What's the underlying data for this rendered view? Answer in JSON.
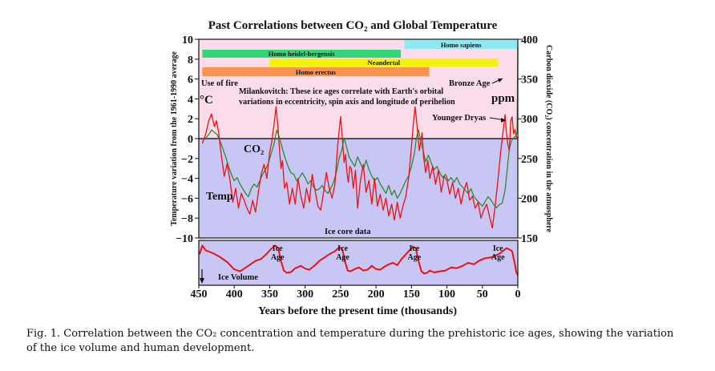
{
  "chart_data": [
    {
      "type": "line",
      "title": "Past Correlations between CO₂ and Global Temperature",
      "xlabel": "Years before the present time (thousands)",
      "ylabel_left": "Temperature variation from the 1961-1990 average",
      "ylabel_left_unit": "°C",
      "ylabel_right": "Carbon dioxide (CO₂) concentration in the atmosphere",
      "ylabel_right_unit": "ppm",
      "xlim": [
        450,
        0
      ],
      "ylim_left": [
        -10,
        10
      ],
      "ylim_right": [
        150,
        400
      ],
      "x_ticks": [
        "450",
        "400",
        "350",
        "300",
        "250",
        "200",
        "150",
        "100",
        "50",
        "0"
      ],
      "y_ticks_left": [
        "10",
        "8",
        "6",
        "4",
        "2",
        "0",
        "−2",
        "−4",
        "−6",
        "−8",
        "−10"
      ],
      "y_ticks_right": [
        "400",
        "350",
        "300",
        "250",
        "200",
        "150"
      ],
      "background_bands": [
        {
          "range": [
            0,
            10
          ],
          "color": "#fadcea"
        },
        {
          "range": [
            -10,
            0
          ],
          "color": "#c7c6f4"
        }
      ],
      "human_bars": [
        {
          "name": "Homo sapiens",
          "start_kya": 160,
          "end_kya": 0,
          "color": "#8eeaf0"
        },
        {
          "name": "Homo heidel-bergensis",
          "start_kya": 445,
          "end_kya": 165,
          "color": "#33d677"
        },
        {
          "name": "Neandertal",
          "start_kya": 350,
          "end_kya": 28,
          "color": "#f5f20a"
        },
        {
          "name": "Homo erectus",
          "start_kya": 445,
          "end_kya": 125,
          "color": "#f79452"
        }
      ],
      "annotations": {
        "fire": "Use of fire",
        "degc": "°C",
        "ppm": "ppm",
        "milankovitch_1": "Milankovitch: These ice ages correlate with Earth's orbital",
        "milankovitch_2": "variations in eccentricity, spin axis and longitude of perihelion",
        "bronze_age": "Bronze Age",
        "younger_dryas": "Younger Dryas",
        "co2": "CO₂",
        "temp": "Temp",
        "ice_core": "Ice core data"
      },
      "series": [
        {
          "name": "Temp",
          "color": "#ee1111",
          "x": [
            445,
            440,
            436,
            432,
            428,
            425,
            422,
            418,
            414,
            410,
            406,
            402,
            398,
            394,
            390,
            386,
            382,
            378,
            374,
            370,
            366,
            362,
            358,
            354,
            350,
            347,
            344,
            341,
            338,
            336,
            334,
            332,
            329,
            326,
            322,
            318,
            314,
            310,
            306,
            302,
            298,
            294,
            290,
            286,
            282,
            278,
            274,
            270,
            266,
            262,
            258,
            254,
            250,
            247,
            245,
            243,
            241,
            239,
            237,
            235,
            232,
            229,
            226,
            222,
            218,
            214,
            210,
            206,
            202,
            198,
            194,
            190,
            186,
            182,
            178,
            174,
            170,
            166,
            162,
            158,
            154,
            150,
            147,
            145,
            143,
            141,
            139,
            137,
            135,
            133,
            130,
            127,
            124,
            120,
            116,
            112,
            108,
            104,
            100,
            96,
            92,
            88,
            84,
            80,
            76,
            72,
            68,
            64,
            60,
            56,
            52,
            48,
            44,
            40,
            36,
            32,
            28,
            24,
            20,
            18,
            16,
            14,
            12,
            10,
            8,
            6,
            4,
            2,
            0
          ],
          "values": [
            -0.5,
            0.5,
            1.8,
            2.5,
            1.2,
            1.8,
            0.6,
            -1.8,
            -3.8,
            -2.5,
            -4.2,
            -6.4,
            -5,
            -7,
            -5.5,
            -6.2,
            -7,
            -7.6,
            -6.2,
            -7.4,
            -5.4,
            -3.6,
            -2.6,
            -4,
            -1.4,
            -0.3,
            1.4,
            3.2,
            0.8,
            -1.2,
            -3,
            -2.2,
            -5,
            -4.4,
            -6.6,
            -5,
            -6.6,
            -4,
            -5.8,
            -7,
            -5,
            -6.4,
            -3.6,
            -5.2,
            -6.8,
            -7.2,
            -5.4,
            -3.4,
            -5,
            -6,
            -4.6,
            -0.6,
            2.2,
            -0.4,
            -2.4,
            -1.6,
            -3.4,
            -4.4,
            -2.8,
            -3,
            -5,
            -3.2,
            -7,
            -4.2,
            -2.6,
            -5.4,
            -4.2,
            -6.6,
            -4,
            -6.8,
            -5.6,
            -7.2,
            -6,
            -7.8,
            -6.6,
            -8.2,
            -6.4,
            -8,
            -6.8,
            -5.8,
            -4,
            -0.8,
            1.8,
            3.2,
            2,
            0.4,
            -1.2,
            -0.4,
            0.6,
            -1.8,
            -3.4,
            -2.2,
            -4,
            -2.8,
            -4.6,
            -3.2,
            -5.4,
            -3.8,
            -4.2,
            -5.6,
            -4.4,
            -6,
            -5,
            -6.6,
            -5.2,
            -4.4,
            -6.2,
            -5.8,
            -7,
            -6.4,
            -8,
            -7.2,
            -6.6,
            -7.8,
            -9,
            -6.8,
            -4.2,
            -1.2,
            1.2,
            2.4,
            0.6,
            -0.6,
            -1.2,
            1.8,
            2.2,
            0.5,
            0.9,
            0.2,
            -0.1
          ]
        },
        {
          "name": "CO₂",
          "color": "#2e8b2e",
          "x": [
            445,
            440,
            436,
            432,
            428,
            424,
            420,
            416,
            412,
            408,
            404,
            400,
            396,
            392,
            388,
            384,
            380,
            376,
            372,
            368,
            364,
            360,
            356,
            352,
            348,
            344,
            340,
            336,
            332,
            328,
            324,
            320,
            316,
            312,
            308,
            304,
            300,
            296,
            292,
            288,
            284,
            280,
            276,
            272,
            268,
            264,
            260,
            256,
            252,
            248,
            245,
            242,
            238,
            234,
            230,
            226,
            222,
            218,
            214,
            210,
            206,
            202,
            198,
            194,
            190,
            186,
            182,
            178,
            174,
            170,
            166,
            162,
            158,
            154,
            150,
            146,
            143,
            140,
            137,
            134,
            130,
            126,
            122,
            118,
            114,
            110,
            106,
            102,
            98,
            94,
            90,
            86,
            82,
            78,
            74,
            70,
            66,
            62,
            58,
            54,
            50,
            46,
            42,
            38,
            34,
            30,
            26,
            22,
            18,
            15,
            12,
            9,
            6,
            3,
            1,
            0
          ],
          "values": [
            274,
            276,
            280,
            286,
            283,
            280,
            272,
            262,
            252,
            240,
            230,
            222,
            226,
            218,
            212,
            206,
            202,
            212,
            218,
            214,
            222,
            230,
            236,
            244,
            256,
            268,
            286,
            276,
            262,
            250,
            240,
            232,
            230,
            222,
            226,
            232,
            226,
            218,
            222,
            214,
            210,
            212,
            216,
            210,
            206,
            212,
            220,
            232,
            250,
            262,
            276,
            266,
            252,
            246,
            240,
            252,
            244,
            236,
            248,
            236,
            228,
            222,
            226,
            218,
            212,
            206,
            216,
            204,
            210,
            200,
            206,
            214,
            222,
            228,
            240,
            256,
            276,
            286,
            272,
            262,
            246,
            254,
            244,
            236,
            240,
            232,
            226,
            230,
            222,
            226,
            220,
            226,
            218,
            214,
            210,
            206,
            212,
            202,
            198,
            194,
            190,
            196,
            202,
            198,
            192,
            188,
            192,
            194,
            210,
            235,
            262,
            272,
            276,
            278,
            283,
            390
          ]
        },
        {
          "name": "Ice Volume",
          "color": "#ee1111",
          "x": [
            449,
            445,
            440,
            430,
            420,
            410,
            400,
            392,
            385,
            378,
            370,
            362,
            355,
            348,
            342,
            338,
            334,
            330,
            326,
            320,
            314,
            306,
            300,
            294,
            286,
            280,
            274,
            266,
            258,
            252,
            248,
            244,
            240,
            236,
            230,
            224,
            218,
            212,
            206,
            200,
            194,
            188,
            182,
            176,
            170,
            164,
            158,
            152,
            148,
            144,
            140,
            136,
            132,
            128,
            124,
            118,
            110,
            102,
            94,
            86,
            78,
            70,
            62,
            54,
            46,
            38,
            30,
            24,
            20,
            16,
            12,
            8,
            4,
            2,
            0
          ],
          "values": [
            0.72,
            0.95,
            0.82,
            0.75,
            0.65,
            0.52,
            0.33,
            0.28,
            0.36,
            0.45,
            0.55,
            0.6,
            0.72,
            0.86,
            0.95,
            0.88,
            0.55,
            0.3,
            0.24,
            0.26,
            0.36,
            0.42,
            0.35,
            0.32,
            0.44,
            0.55,
            0.62,
            0.72,
            0.8,
            0.9,
            0.88,
            0.55,
            0.3,
            0.28,
            0.34,
            0.38,
            0.3,
            0.32,
            0.42,
            0.34,
            0.32,
            0.4,
            0.46,
            0.5,
            0.44,
            0.6,
            0.72,
            0.84,
            0.92,
            0.88,
            0.55,
            0.28,
            0.22,
            0.24,
            0.3,
            0.25,
            0.28,
            0.3,
            0.38,
            0.36,
            0.42,
            0.5,
            0.46,
            0.56,
            0.62,
            0.64,
            0.7,
            0.76,
            0.82,
            0.88,
            0.85,
            0.8,
            0.45,
            0.25,
            0.18
          ]
        }
      ],
      "ice_panel": {
        "label": "Ice Volume",
        "ice_age_labels": [
          {
            "x_kya": 339,
            "text_1": "Ice",
            "text_2": "Age"
          },
          {
            "x_kya": 247,
            "text_1": "Ice",
            "text_2": "Age"
          },
          {
            "x_kya": 146,
            "text_1": "Ice",
            "text_2": "Age"
          },
          {
            "x_kya": 28,
            "text_1": "Ice",
            "text_2": "Age"
          }
        ]
      }
    }
  ],
  "caption": {
    "line_1": "Fig. 1.   Correlation between the CO₂ concentration and temperature during the prehistoric ice ages, showing the variation",
    "line_2": "of the ice volume and human development."
  }
}
